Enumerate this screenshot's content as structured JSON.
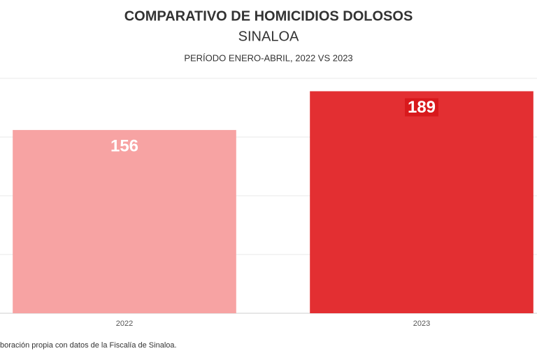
{
  "chart_data": {
    "type": "bar",
    "title": "COMPARATIVO DE HOMICIDIOS DOLOSOS",
    "subtitle": "SINALOA",
    "period": "PERÍODO ENERO-ABRIL, 2022 VS 2023",
    "categories": [
      "2022",
      "2023"
    ],
    "values": [
      156,
      189
    ],
    "colors": [
      "#f7a3a3",
      "#e32f32"
    ],
    "ylim": [
      0,
      200
    ],
    "yticks": [
      0,
      50,
      100,
      150,
      200
    ],
    "grid": true,
    "source": "boración propia con datos de la Fiscalía de Sinaloa."
  }
}
